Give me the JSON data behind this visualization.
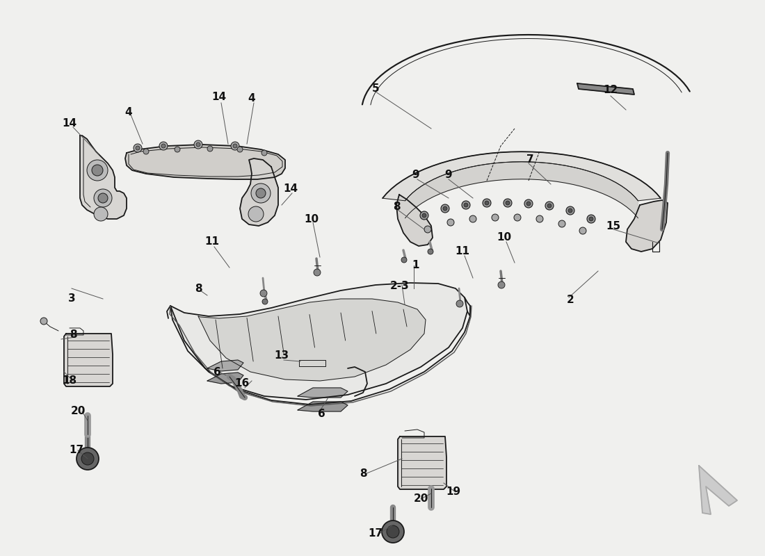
{
  "bg_color": "#f0f0ee",
  "line_color": "#1a1a1a",
  "label_color": "#111111",
  "font_size": 10,
  "font_size_large": 11,
  "lw_main": 1.3,
  "lw_thin": 0.7,
  "lw_thick": 2.0
}
